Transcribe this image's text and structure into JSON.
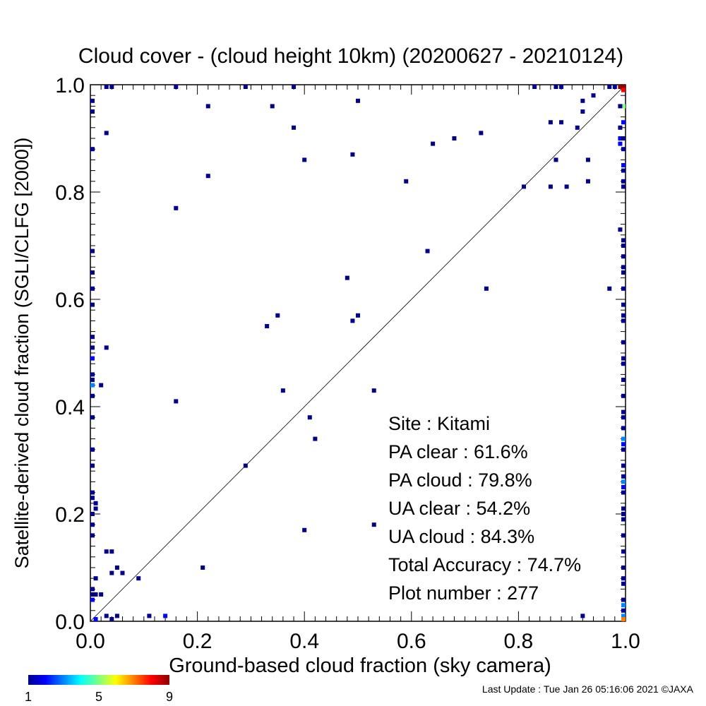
{
  "chart_data": {
    "type": "heatmap",
    "title": "Cloud cover - (cloud height 10km)  (20200627 - 20210124)",
    "xlabel": "Ground-based cloud fraction (sky camera)",
    "ylabel": "Satellite-derived cloud fraction (SGLI/CLFG [2000])",
    "xlim": [
      0,
      1
    ],
    "ylim": [
      0,
      1
    ],
    "x_ticks": [
      "0.0",
      "0.2",
      "0.4",
      "0.6",
      "0.8",
      "1.0"
    ],
    "y_ticks": [
      "0.0",
      "0.2",
      "0.4",
      "0.6",
      "0.8",
      "1.0"
    ],
    "colorbar": {
      "min": 1,
      "max": 9,
      "tick_labels": [
        "1",
        "5",
        "9"
      ]
    },
    "reference_line": "y = x",
    "stats": [
      "Site : Kitami",
      "PA clear :  61.6%",
      "PA cloud :  79.8%",
      "UA clear :  54.2%",
      "UA cloud :  84.3%",
      "Total Accuracy :  74.7%",
      "Plot number :       277"
    ],
    "points": [
      [
        0.03,
        1.0,
        1
      ],
      [
        0.04,
        1.0,
        1
      ],
      [
        0.16,
        1.0,
        1
      ],
      [
        0.29,
        1.0,
        1
      ],
      [
        0.38,
        1.0,
        1
      ],
      [
        0.83,
        1.0,
        1
      ],
      [
        0.87,
        1.0,
        1
      ],
      [
        0.88,
        1.0,
        1
      ],
      [
        0.97,
        1.0,
        1
      ],
      [
        0.98,
        1.0,
        1
      ],
      [
        0.99,
        1.0,
        9
      ],
      [
        1.0,
        1.0,
        9
      ],
      [
        1.0,
        0.99,
        8
      ],
      [
        0.0,
        0.97,
        1
      ],
      [
        0.0,
        0.95,
        1
      ],
      [
        0.22,
        0.96,
        1
      ],
      [
        0.34,
        0.96,
        1
      ],
      [
        0.5,
        0.97,
        1
      ],
      [
        0.92,
        0.97,
        1
      ],
      [
        0.94,
        0.98,
        1
      ],
      [
        0.92,
        0.95,
        1
      ],
      [
        1.0,
        0.96,
        5
      ],
      [
        0.99,
        0.96,
        1
      ],
      [
        0.03,
        0.91,
        1
      ],
      [
        0.0,
        0.88,
        1
      ],
      [
        0.38,
        0.92,
        1
      ],
      [
        0.49,
        0.87,
        1
      ],
      [
        0.64,
        0.89,
        1
      ],
      [
        0.68,
        0.9,
        1
      ],
      [
        0.73,
        0.91,
        1
      ],
      [
        0.86,
        0.93,
        1
      ],
      [
        0.88,
        0.93,
        1
      ],
      [
        0.91,
        0.92,
        1
      ],
      [
        0.99,
        0.92,
        1
      ],
      [
        0.99,
        0.9,
        2
      ],
      [
        0.99,
        0.89,
        2
      ],
      [
        1.0,
        0.93,
        2
      ],
      [
        1.0,
        0.9,
        1
      ],
      [
        1.0,
        0.88,
        1
      ],
      [
        0.22,
        0.83,
        1
      ],
      [
        0.4,
        0.86,
        1
      ],
      [
        0.59,
        0.82,
        1
      ],
      [
        0.81,
        0.81,
        1
      ],
      [
        0.86,
        0.81,
        1
      ],
      [
        0.87,
        0.86,
        1
      ],
      [
        0.89,
        0.81,
        1
      ],
      [
        0.93,
        0.86,
        1
      ],
      [
        0.93,
        0.82,
        1
      ],
      [
        1.0,
        0.85,
        2
      ],
      [
        1.0,
        0.84,
        1
      ],
      [
        1.0,
        0.82,
        1
      ],
      [
        1.0,
        0.81,
        1
      ],
      [
        0.16,
        0.77,
        1
      ],
      [
        0.99,
        0.73,
        1
      ],
      [
        1.0,
        0.71,
        1
      ],
      [
        1.0,
        0.7,
        1
      ],
      [
        1.0,
        0.68,
        1
      ],
      [
        0.0,
        0.69,
        1
      ],
      [
        0.63,
        0.69,
        1
      ],
      [
        0.0,
        0.65,
        1
      ],
      [
        0.0,
        0.62,
        1
      ],
      [
        0.0,
        0.59,
        1
      ],
      [
        0.48,
        0.64,
        1
      ],
      [
        0.74,
        0.62,
        1
      ],
      [
        0.97,
        0.62,
        1
      ],
      [
        1.0,
        0.66,
        1
      ],
      [
        1.0,
        0.65,
        1
      ],
      [
        1.0,
        0.62,
        1
      ],
      [
        1.0,
        0.59,
        1
      ],
      [
        1.0,
        0.57,
        1
      ],
      [
        1.0,
        0.56,
        1
      ],
      [
        0.35,
        0.57,
        1
      ],
      [
        0.33,
        0.55,
        1
      ],
      [
        0.49,
        0.56,
        1
      ],
      [
        0.5,
        0.57,
        1
      ],
      [
        0.0,
        0.53,
        1
      ],
      [
        0.0,
        0.51,
        1
      ],
      [
        0.0,
        0.49,
        2
      ],
      [
        0.03,
        0.51,
        1
      ],
      [
        1.0,
        0.52,
        1
      ],
      [
        1.0,
        0.49,
        1
      ],
      [
        1.0,
        0.48,
        1
      ],
      [
        1.0,
        0.45,
        1
      ],
      [
        0.0,
        0.46,
        1
      ],
      [
        0.0,
        0.45,
        1
      ],
      [
        0.0,
        0.44,
        3
      ],
      [
        0.0,
        0.42,
        1
      ],
      [
        0.02,
        0.44,
        1
      ],
      [
        0.36,
        0.43,
        1
      ],
      [
        0.53,
        0.43,
        1
      ],
      [
        0.16,
        0.41,
        1
      ],
      [
        1.0,
        0.42,
        1
      ],
      [
        0.0,
        0.38,
        1
      ],
      [
        0.41,
        0.38,
        1
      ],
      [
        0.42,
        0.34,
        1
      ],
      [
        1.0,
        0.39,
        1
      ],
      [
        1.0,
        0.38,
        1
      ],
      [
        1.0,
        0.36,
        1
      ],
      [
        1.0,
        0.34,
        3
      ],
      [
        1.0,
        0.33,
        2
      ],
      [
        1.0,
        0.32,
        1
      ],
      [
        0.0,
        0.32,
        1
      ],
      [
        0.0,
        0.29,
        1
      ],
      [
        0.29,
        0.29,
        1
      ],
      [
        1.0,
        0.29,
        1
      ],
      [
        1.0,
        0.27,
        1
      ],
      [
        1.0,
        0.26,
        3
      ],
      [
        1.0,
        0.25,
        2
      ],
      [
        1.0,
        0.24,
        1
      ],
      [
        0.0,
        0.24,
        1
      ],
      [
        0.0,
        0.23,
        1
      ],
      [
        0.01,
        0.22,
        1
      ],
      [
        0.01,
        0.21,
        1
      ],
      [
        0.0,
        0.2,
        1
      ],
      [
        0.0,
        0.18,
        1
      ],
      [
        0.0,
        0.16,
        1
      ],
      [
        0.4,
        0.17,
        1
      ],
      [
        0.53,
        0.18,
        1
      ],
      [
        1.0,
        0.21,
        1
      ],
      [
        1.0,
        0.2,
        1
      ],
      [
        1.0,
        0.19,
        1
      ],
      [
        1.0,
        0.16,
        1
      ],
      [
        0.03,
        0.13,
        1
      ],
      [
        0.04,
        0.13,
        1
      ],
      [
        0.04,
        0.09,
        1
      ],
      [
        0.05,
        0.1,
        1
      ],
      [
        0.06,
        0.09,
        1
      ],
      [
        0.01,
        0.08,
        1
      ],
      [
        0.09,
        0.08,
        1
      ],
      [
        0.21,
        0.1,
        1
      ],
      [
        1.0,
        0.13,
        1
      ],
      [
        1.0,
        0.1,
        1
      ],
      [
        1.0,
        0.08,
        1
      ],
      [
        1.0,
        0.07,
        1
      ],
      [
        0.0,
        0.05,
        1
      ],
      [
        0.0,
        0.04,
        2
      ],
      [
        0.01,
        0.05,
        1
      ],
      [
        0.02,
        0.05,
        1
      ],
      [
        0.0,
        0.06,
        1
      ],
      [
        1.0,
        0.04,
        1
      ],
      [
        1.0,
        0.03,
        3
      ],
      [
        1.0,
        0.02,
        1
      ],
      [
        0.01,
        0.0,
        2
      ],
      [
        0.03,
        0.01,
        1
      ],
      [
        0.04,
        0.0,
        1
      ],
      [
        0.05,
        0.01,
        1
      ],
      [
        0.11,
        0.01,
        1
      ],
      [
        0.14,
        0.01,
        2
      ],
      [
        0.92,
        0.01,
        1
      ],
      [
        1.0,
        0.01,
        3
      ],
      [
        1.0,
        0.0,
        7
      ]
    ]
  },
  "footer": "Last Update : Tue Jan 26 05:16:06 2021  ©JAXA"
}
